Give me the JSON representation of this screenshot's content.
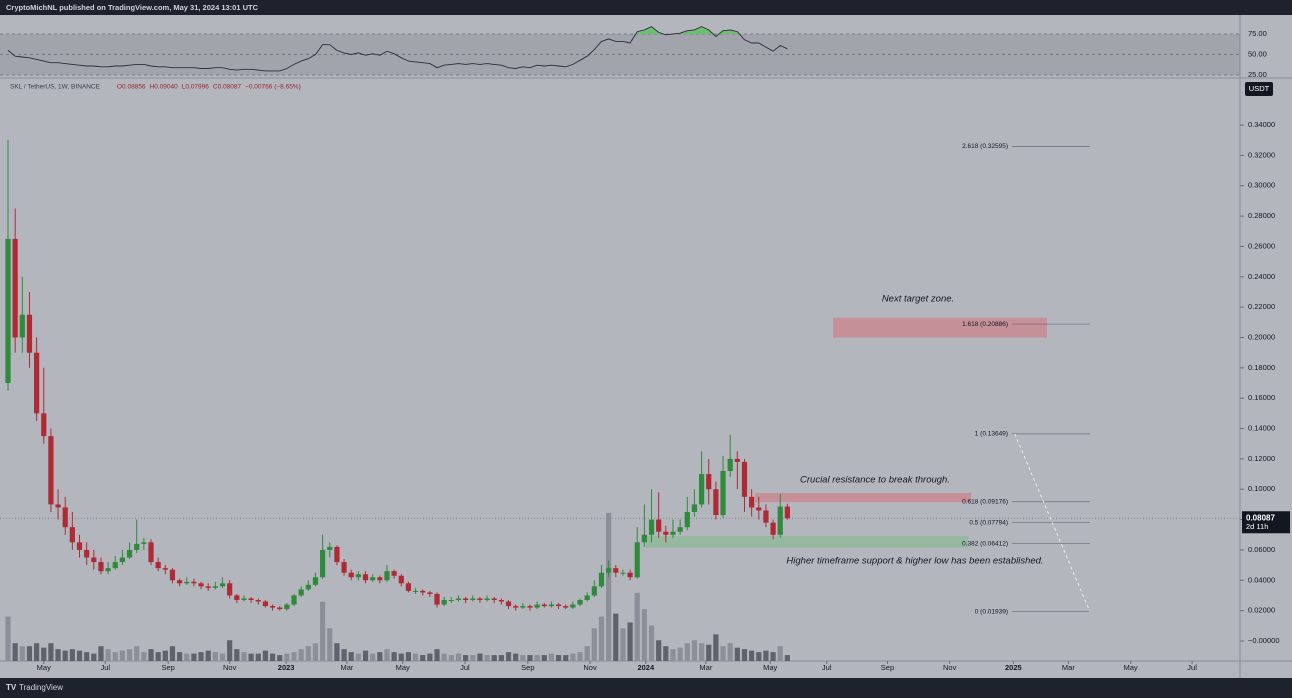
{
  "header": {
    "publisher": "CryptoMichNL published on TradingView.com, May 31, 2024 13:01 UTC",
    "brand": "TradingView"
  },
  "chart_data": {
    "type": "candlestick",
    "symbol": "SKL / TetherUS, 1W, BINANCE",
    "legend_values": [
      "O0.08856",
      "H0.09040",
      "L0.07996",
      "C0.08087",
      "−0.00766 (−8.65%)"
    ],
    "currency": "USDT",
    "last_price_label": "0.08087",
    "last_price": 0.08087,
    "countdown": "2d 11h",
    "up_color": "#2f8a3c",
    "down_color": "#b02a35",
    "open": [
      0.17,
      0.265,
      0.2,
      0.215,
      0.19,
      0.15,
      0.135,
      0.09,
      0.088,
      0.075,
      0.065,
      0.06,
      0.055,
      0.052,
      0.046,
      0.048,
      0.052,
      0.055,
      0.06,
      0.064,
      0.065,
      0.052,
      0.048,
      0.047,
      0.04,
      0.038,
      0.039,
      0.038,
      0.036,
      0.035,
      0.036,
      0.038,
      0.03,
      0.027,
      0.028,
      0.027,
      0.026,
      0.023,
      0.022,
      0.021,
      0.024,
      0.03,
      0.034,
      0.037,
      0.042,
      0.06,
      0.062,
      0.052,
      0.045,
      0.042,
      0.044,
      0.04,
      0.042,
      0.04,
      0.046,
      0.043,
      0.038,
      0.033,
      0.033,
      0.032,
      0.031,
      0.024,
      0.027,
      0.027,
      0.028,
      0.027,
      0.028,
      0.027,
      0.028,
      0.027,
      0.026,
      0.023,
      0.022,
      0.023,
      0.022,
      0.024,
      0.023,
      0.024,
      0.023,
      0.022,
      0.024,
      0.027,
      0.03,
      0.036,
      0.045,
      0.048,
      0.045,
      0.045,
      0.042,
      0.065,
      0.07,
      0.08,
      0.072,
      0.07,
      0.072,
      0.075,
      0.085,
      0.09,
      0.11,
      0.1,
      0.083,
      0.112,
      0.12,
      0.118,
      0.095,
      0.088,
      0.086,
      0.078,
      0.07,
      0.08856
    ],
    "high": [
      0.33,
      0.285,
      0.24,
      0.23,
      0.2,
      0.18,
      0.14,
      0.1,
      0.095,
      0.085,
      0.07,
      0.065,
      0.06,
      0.055,
      0.052,
      0.056,
      0.06,
      0.065,
      0.08,
      0.068,
      0.067,
      0.055,
      0.05,
      0.048,
      0.041,
      0.042,
      0.041,
      0.039,
      0.038,
      0.039,
      0.042,
      0.04,
      0.031,
      0.03,
      0.029,
      0.028,
      0.027,
      0.024,
      0.023,
      0.025,
      0.031,
      0.036,
      0.04,
      0.045,
      0.07,
      0.065,
      0.063,
      0.054,
      0.047,
      0.046,
      0.046,
      0.044,
      0.043,
      0.05,
      0.047,
      0.044,
      0.039,
      0.035,
      0.034,
      0.033,
      0.032,
      0.029,
      0.029,
      0.03,
      0.029,
      0.03,
      0.029,
      0.03,
      0.029,
      0.028,
      0.027,
      0.024,
      0.025,
      0.024,
      0.026,
      0.025,
      0.026,
      0.025,
      0.024,
      0.026,
      0.028,
      0.032,
      0.04,
      0.05,
      0.053,
      0.05,
      0.047,
      0.047,
      0.075,
      0.09,
      0.1,
      0.098,
      0.076,
      0.08,
      0.08,
      0.095,
      0.1,
      0.125,
      0.12,
      0.105,
      0.122,
      0.136,
      0.125,
      0.12,
      0.1,
      0.095,
      0.09,
      0.08,
      0.097,
      0.0904
    ],
    "low": [
      0.165,
      0.19,
      0.19,
      0.18,
      0.145,
      0.13,
      0.085,
      0.08,
      0.07,
      0.06,
      0.055,
      0.05,
      0.047,
      0.044,
      0.044,
      0.047,
      0.05,
      0.054,
      0.058,
      0.06,
      0.05,
      0.046,
      0.044,
      0.038,
      0.036,
      0.037,
      0.036,
      0.034,
      0.033,
      0.034,
      0.035,
      0.028,
      0.025,
      0.026,
      0.025,
      0.024,
      0.022,
      0.02,
      0.02,
      0.02,
      0.023,
      0.029,
      0.033,
      0.036,
      0.041,
      0.055,
      0.05,
      0.043,
      0.04,
      0.04,
      0.038,
      0.039,
      0.038,
      0.039,
      0.041,
      0.036,
      0.032,
      0.031,
      0.03,
      0.029,
      0.022,
      0.023,
      0.025,
      0.026,
      0.025,
      0.026,
      0.025,
      0.026,
      0.025,
      0.024,
      0.021,
      0.02,
      0.021,
      0.02,
      0.021,
      0.022,
      0.022,
      0.021,
      0.021,
      0.021,
      0.023,
      0.026,
      0.029,
      0.035,
      0.042,
      0.042,
      0.043,
      0.04,
      0.041,
      0.062,
      0.065,
      0.068,
      0.065,
      0.068,
      0.07,
      0.073,
      0.082,
      0.088,
      0.09,
      0.08,
      0.081,
      0.108,
      0.1,
      0.085,
      0.082,
      0.08,
      0.075,
      0.067,
      0.068,
      0.07996
    ],
    "close": [
      0.265,
      0.2,
      0.215,
      0.19,
      0.15,
      0.135,
      0.09,
      0.088,
      0.075,
      0.065,
      0.06,
      0.055,
      0.052,
      0.046,
      0.048,
      0.052,
      0.055,
      0.06,
      0.064,
      0.065,
      0.052,
      0.048,
      0.047,
      0.04,
      0.038,
      0.039,
      0.038,
      0.036,
      0.035,
      0.036,
      0.038,
      0.03,
      0.027,
      0.028,
      0.027,
      0.026,
      0.023,
      0.022,
      0.021,
      0.024,
      0.03,
      0.034,
      0.037,
      0.042,
      0.06,
      0.062,
      0.052,
      0.045,
      0.042,
      0.044,
      0.04,
      0.042,
      0.04,
      0.046,
      0.043,
      0.038,
      0.033,
      0.033,
      0.032,
      0.031,
      0.024,
      0.027,
      0.027,
      0.028,
      0.027,
      0.028,
      0.027,
      0.028,
      0.027,
      0.026,
      0.023,
      0.022,
      0.023,
      0.022,
      0.024,
      0.023,
      0.024,
      0.023,
      0.022,
      0.024,
      0.027,
      0.03,
      0.036,
      0.045,
      0.048,
      0.045,
      0.045,
      0.042,
      0.065,
      0.07,
      0.08,
      0.072,
      0.07,
      0.072,
      0.075,
      0.085,
      0.09,
      0.11,
      0.1,
      0.083,
      0.112,
      0.12,
      0.118,
      0.095,
      0.088,
      0.086,
      0.078,
      0.07,
      0.08856,
      0.08087
    ],
    "volume": [
      30,
      12,
      10,
      10,
      12,
      9,
      12,
      8,
      7,
      8,
      7,
      6,
      5,
      10,
      8,
      6,
      7,
      8,
      10,
      6,
      8,
      6,
      7,
      10,
      6,
      5,
      5,
      6,
      7,
      6,
      5,
      14,
      8,
      6,
      5,
      5,
      7,
      5,
      4,
      5,
      6,
      8,
      10,
      12,
      40,
      22,
      12,
      8,
      6,
      5,
      7,
      5,
      6,
      8,
      6,
      5,
      6,
      5,
      4,
      5,
      8,
      5,
      4,
      5,
      4,
      4,
      5,
      4,
      4,
      4,
      6,
      5,
      4,
      4,
      4,
      4,
      5,
      4,
      4,
      5,
      6,
      10,
      22,
      30,
      100,
      32,
      22,
      26,
      46,
      35,
      24,
      14,
      10,
      8,
      9,
      12,
      14,
      12,
      11,
      18,
      10,
      12,
      9,
      8,
      7,
      6,
      7,
      6,
      10,
      4
    ],
    "volume_ylim": [
      0,
      392
    ],
    "rsi": [
      55,
      48,
      47,
      46,
      44,
      42,
      40,
      40,
      39,
      38,
      37,
      36,
      36,
      35,
      35,
      36,
      36,
      37,
      38,
      38,
      36,
      35,
      35,
      34,
      34,
      34,
      34,
      33,
      33,
      34,
      34,
      32,
      31,
      32,
      32,
      31,
      30,
      30,
      30,
      33,
      38,
      42,
      45,
      50,
      62,
      62,
      55,
      52,
      50,
      52,
      49,
      51,
      49,
      54,
      51,
      46,
      42,
      41,
      40,
      39,
      34,
      37,
      38,
      39,
      38,
      39,
      38,
      39,
      38,
      37,
      34,
      33,
      35,
      34,
      37,
      36,
      37,
      36,
      35,
      38,
      43,
      48,
      56,
      66,
      69,
      66,
      66,
      64,
      78,
      80,
      84,
      77,
      74,
      75,
      76,
      79,
      80,
      84,
      80,
      72,
      79,
      80,
      78,
      68,
      64,
      64,
      59,
      54,
      61,
      57
    ],
    "rsi_ylim": [
      22.6,
      98.2
    ],
    "rsi_band": [
      25,
      75
    ],
    "rsi_ticks": [
      {
        "value": 75,
        "label": "75.00"
      },
      {
        "value": 50,
        "label": "50.00"
      },
      {
        "value": 25,
        "label": "25.00"
      }
    ],
    "xlim": [
      -1.12,
      172.3
    ],
    "xticks": [
      {
        "value": 5,
        "label": "May"
      },
      {
        "value": 13.6,
        "label": "Jul"
      },
      {
        "value": 22.4,
        "label": "Sep"
      },
      {
        "value": 31,
        "label": "Nov"
      },
      {
        "value": 38.9,
        "label": "2023"
      },
      {
        "value": 47.4,
        "label": "Mar"
      },
      {
        "value": 55.2,
        "label": "May"
      },
      {
        "value": 63.9,
        "label": "Jul"
      },
      {
        "value": 72.7,
        "label": "Sep"
      },
      {
        "value": 81.4,
        "label": "Nov"
      },
      {
        "value": 89.2,
        "label": "2024"
      },
      {
        "value": 97.6,
        "label": "Mar"
      },
      {
        "value": 106.6,
        "label": "May"
      },
      {
        "value": 114.5,
        "label": "Jul"
      },
      {
        "value": 123,
        "label": "Sep"
      },
      {
        "value": 131.7,
        "label": "Nov"
      },
      {
        "value": 140.6,
        "label": "2025"
      },
      {
        "value": 148.3,
        "label": "Mar"
      },
      {
        "value": 157,
        "label": "May"
      },
      {
        "value": 165.6,
        "label": "Jul"
      }
    ],
    "ylim": [
      -0.0132,
      0.3697
    ],
    "yticks": [
      {
        "value": 0.34,
        "label": "0.34000"
      },
      {
        "value": 0.32,
        "label": "0.32000"
      },
      {
        "value": 0.3,
        "label": "0.30000"
      },
      {
        "value": 0.28,
        "label": "0.28000"
      },
      {
        "value": 0.26,
        "label": "0.26000"
      },
      {
        "value": 0.24,
        "label": "0.24000"
      },
      {
        "value": 0.22,
        "label": "0.22000"
      },
      {
        "value": 0.2,
        "label": "0.20000"
      },
      {
        "value": 0.18,
        "label": "0.18000"
      },
      {
        "value": 0.16,
        "label": "0.16000"
      },
      {
        "value": 0.14,
        "label": "0.14000"
      },
      {
        "value": 0.12,
        "label": "0.12000"
      },
      {
        "value": 0.1,
        "label": "0.10000"
      },
      {
        "value": 0.08,
        "label": "0.08000"
      },
      {
        "value": 0.06,
        "label": "0.06000"
      },
      {
        "value": 0.04,
        "label": "0.04000"
      },
      {
        "value": 0.02,
        "label": "0.02000"
      },
      {
        "value": 0,
        "label": "−0.00000"
      }
    ],
    "fib_levels": [
      {
        "value": 0.32595,
        "label": "2.618 (0.32595)"
      },
      {
        "value": 0.20886,
        "label": "1.618 (0.20886)"
      },
      {
        "value": 0.13649,
        "label": "1 (0.13649)"
      },
      {
        "value": 0.09176,
        "label": "0.618 (0.09176)"
      },
      {
        "value": 0.07794,
        "label": "0.5 (0.07794)"
      },
      {
        "value": 0.06412,
        "label": "0.382 (0.06412)"
      },
      {
        "value": 0.01939,
        "label": "0 (0.01939)"
      }
    ],
    "zones": [
      {
        "x": [
          115.4,
          145.3
        ],
        "y": [
          0.2,
          0.213
        ],
        "color": "#c98a93"
      },
      {
        "x": [
          104.5,
          134.7
        ],
        "y": [
          0.0915,
          0.0975
        ],
        "color": "#c98a93"
      },
      {
        "x": [
          89.2,
          134.3
        ],
        "y": [
          0.0615,
          0.069
        ],
        "color": "#8fb89a"
      }
    ],
    "trendline_x": [
      140.8,
      151.3
    ],
    "annotations": [
      "Next target zone.",
      "Crucial resistance to break through.",
      "Higher timeframe support & higher low has been established."
    ]
  }
}
